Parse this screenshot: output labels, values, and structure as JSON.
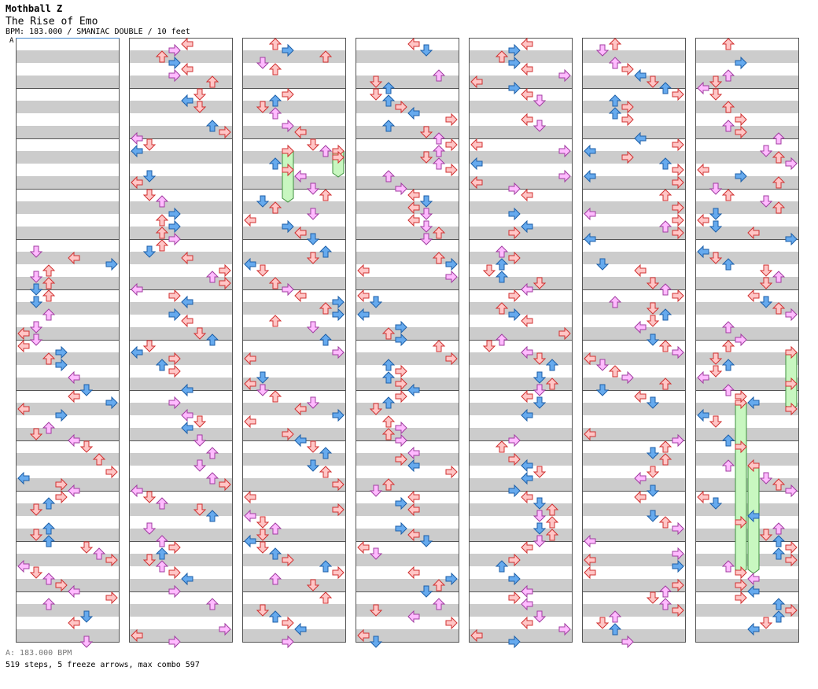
{
  "header": {
    "artist": "Mothball Z",
    "title": "The Rise of Emo",
    "info": "BPM: 183.000 / SMANIAC DOUBLE / 10 feet"
  },
  "bpm_marker": "A",
  "footer": {
    "bpm": "A: 183.000 BPM",
    "stats": "519 steps, 5 freeze arrows, max combo 597"
  },
  "colors": {
    "band_gray": "#cccccc",
    "band_white": "#ffffff",
    "measure_line": "#555555",
    "arrow_red_fill": "#ffc6c6",
    "arrow_red_stroke": "#d13030",
    "arrow_blue_fill": "#66aaee",
    "arrow_blue_stroke": "#1d5fa8",
    "arrow_pink_fill": "#ffbbff",
    "arrow_pink_stroke": "#a03ca0",
    "freeze_fill": "#c8f7c0",
    "freeze_stroke": "#3e8f3e",
    "bpm_line": "#4488cc"
  },
  "chart_data": {
    "type": "stepchart",
    "steps_total": 519,
    "freeze_arrows": 5,
    "max_combo": 597,
    "bpm": 183,
    "mode": "SMANIAC DOUBLE",
    "rating": "10 feet",
    "columns": 7,
    "measures_per_column": 12,
    "lanes": [
      "L1",
      "D1",
      "U1",
      "R1",
      "L2",
      "D2",
      "U2",
      "R2"
    ]
  }
}
